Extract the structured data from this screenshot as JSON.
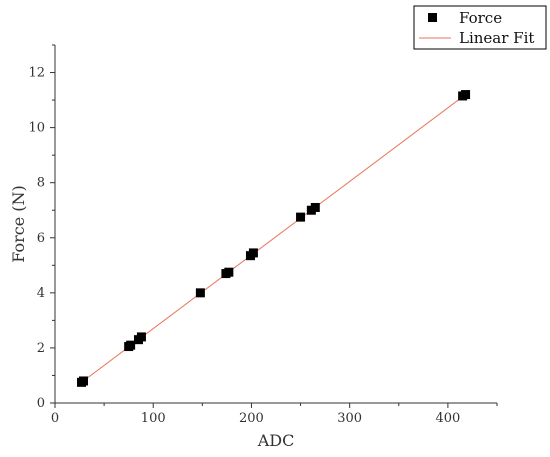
{
  "chart_data": {
    "type": "scatter",
    "title": "",
    "xlabel": "ADC",
    "ylabel": "Force (N)",
    "xlim": [
      0,
      450
    ],
    "ylim": [
      0,
      13
    ],
    "x_ticks": [
      0,
      100,
      200,
      300,
      400
    ],
    "y_ticks": [
      0,
      2,
      4,
      6,
      8,
      10,
      12
    ],
    "grid": false,
    "legend_position": "top-right",
    "series": [
      {
        "name": "Force",
        "kind": "scatter",
        "marker": "square",
        "color": "#000000",
        "points": [
          {
            "x": 27,
            "y": 0.75
          },
          {
            "x": 29,
            "y": 0.8
          },
          {
            "x": 75,
            "y": 2.05
          },
          {
            "x": 77,
            "y": 2.1
          },
          {
            "x": 85,
            "y": 2.3
          },
          {
            "x": 88,
            "y": 2.4
          },
          {
            "x": 148,
            "y": 4.0
          },
          {
            "x": 174,
            "y": 4.7
          },
          {
            "x": 177,
            "y": 4.75
          },
          {
            "x": 199,
            "y": 5.35
          },
          {
            "x": 202,
            "y": 5.45
          },
          {
            "x": 250,
            "y": 6.75
          },
          {
            "x": 261,
            "y": 7.0
          },
          {
            "x": 265,
            "y": 7.1
          },
          {
            "x": 415,
            "y": 11.15
          },
          {
            "x": 418,
            "y": 11.2
          }
        ]
      },
      {
        "name": "Linear Fit",
        "kind": "line",
        "color": "#e8735a",
        "x": [
          27,
          418
        ],
        "y": [
          0.75,
          11.2
        ]
      }
    ]
  }
}
